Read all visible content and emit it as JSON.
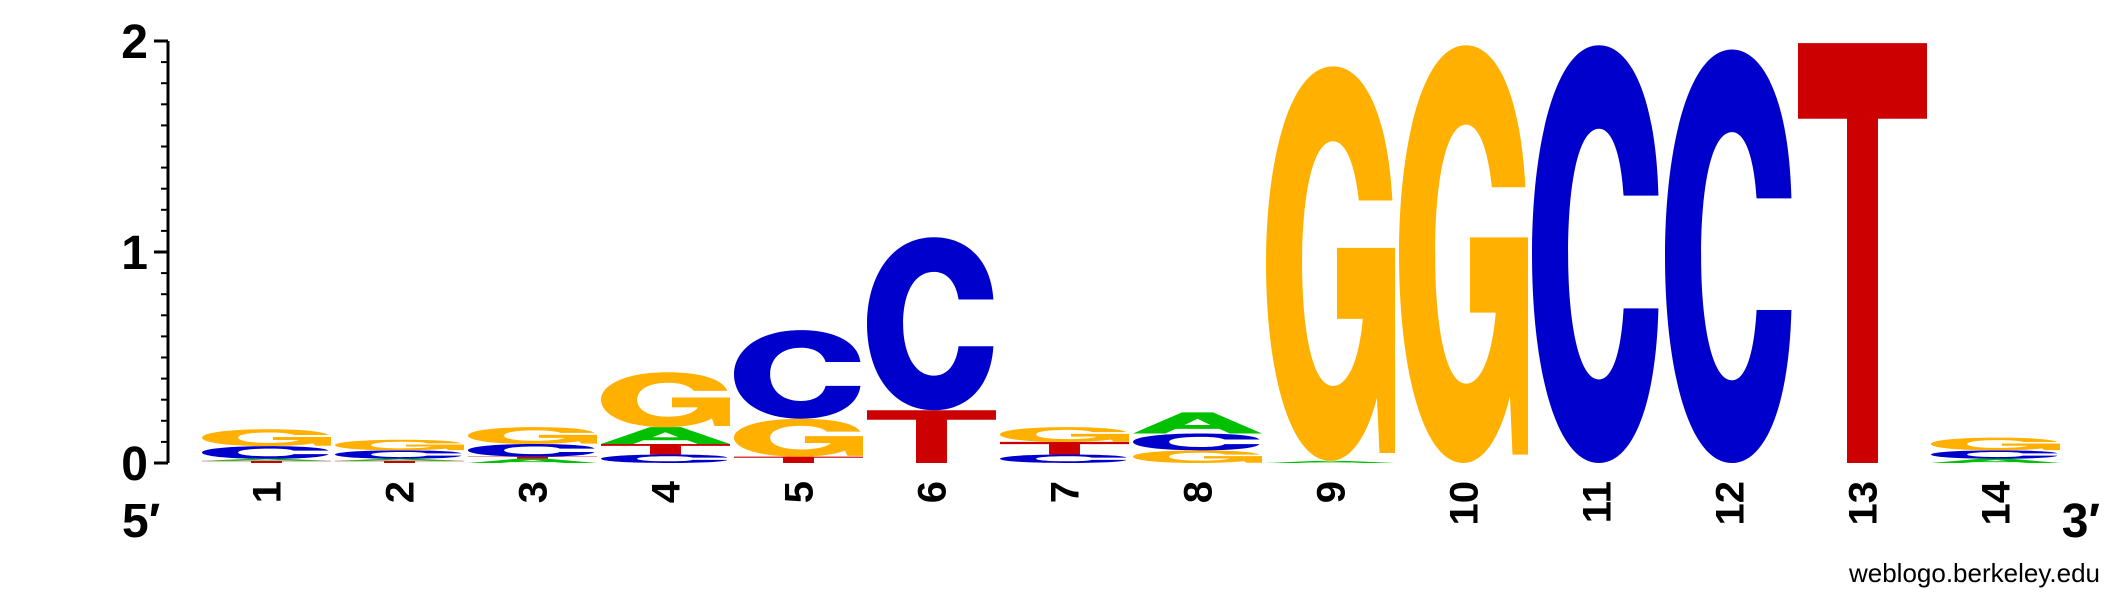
{
  "chart_data": {
    "type": "sequence-logo",
    "y_axis": {
      "range": [
        0,
        2
      ],
      "ticks": [
        "0",
        "1",
        "2"
      ]
    },
    "x_axis": {
      "positions": [
        "1",
        "2",
        "3",
        "4",
        "5",
        "6",
        "7",
        "8",
        "9",
        "10",
        "11",
        "12",
        "13",
        "14"
      ],
      "start_label": "5′",
      "end_label": "3′"
    },
    "credit": "weblogo.berkeley.edu",
    "base_colors": {
      "A": "#00c000",
      "C": "#0000cc",
      "G": "#ffb000",
      "T": "#cc0000"
    },
    "columns": [
      {
        "position": "1",
        "stack": [
          {
            "base": "T",
            "bits": 0.01
          },
          {
            "base": "A",
            "bits": 0.01
          },
          {
            "base": "C",
            "bits": 0.06
          },
          {
            "base": "G",
            "bits": 0.08
          }
        ]
      },
      {
        "position": "2",
        "stack": [
          {
            "base": "T",
            "bits": 0.01
          },
          {
            "base": "A",
            "bits": 0.01
          },
          {
            "base": "C",
            "bits": 0.04
          },
          {
            "base": "G",
            "bits": 0.05
          }
        ]
      },
      {
        "position": "3",
        "stack": [
          {
            "base": "A",
            "bits": 0.02
          },
          {
            "base": "T",
            "bits": 0.01
          },
          {
            "base": "C",
            "bits": 0.06
          },
          {
            "base": "G",
            "bits": 0.08
          }
        ]
      },
      {
        "position": "4",
        "stack": [
          {
            "base": "C",
            "bits": 0.04
          },
          {
            "base": "T",
            "bits": 0.05
          },
          {
            "base": "A",
            "bits": 0.08
          },
          {
            "base": "G",
            "bits": 0.26
          }
        ]
      },
      {
        "position": "5",
        "stack": [
          {
            "base": "T",
            "bits": 0.03
          },
          {
            "base": "G",
            "bits": 0.18
          },
          {
            "base": "C",
            "bits": 0.42
          }
        ]
      },
      {
        "position": "6",
        "stack": [
          {
            "base": "T",
            "bits": 0.25
          },
          {
            "base": "C",
            "bits": 0.82
          }
        ]
      },
      {
        "position": "7",
        "stack": [
          {
            "base": "C",
            "bits": 0.04
          },
          {
            "base": "T",
            "bits": 0.06
          },
          {
            "base": "G",
            "bits": 0.07
          }
        ]
      },
      {
        "position": "8",
        "stack": [
          {
            "base": "G",
            "bits": 0.06
          },
          {
            "base": "C",
            "bits": 0.08
          },
          {
            "base": "A",
            "bits": 0.1
          }
        ]
      },
      {
        "position": "9",
        "stack": [
          {
            "base": "A",
            "bits": 0.01
          },
          {
            "base": "G",
            "bits": 1.87
          }
        ]
      },
      {
        "position": "10",
        "stack": [
          {
            "base": "G",
            "bits": 1.98
          }
        ]
      },
      {
        "position": "11",
        "stack": [
          {
            "base": "C",
            "bits": 1.98
          }
        ]
      },
      {
        "position": "12",
        "stack": [
          {
            "base": "C",
            "bits": 1.96
          }
        ]
      },
      {
        "position": "13",
        "stack": [
          {
            "base": "T",
            "bits": 1.99
          }
        ]
      },
      {
        "position": "14",
        "stack": [
          {
            "base": "A",
            "bits": 0.02
          },
          {
            "base": "C",
            "bits": 0.04
          },
          {
            "base": "G",
            "bits": 0.06
          }
        ]
      }
    ]
  }
}
